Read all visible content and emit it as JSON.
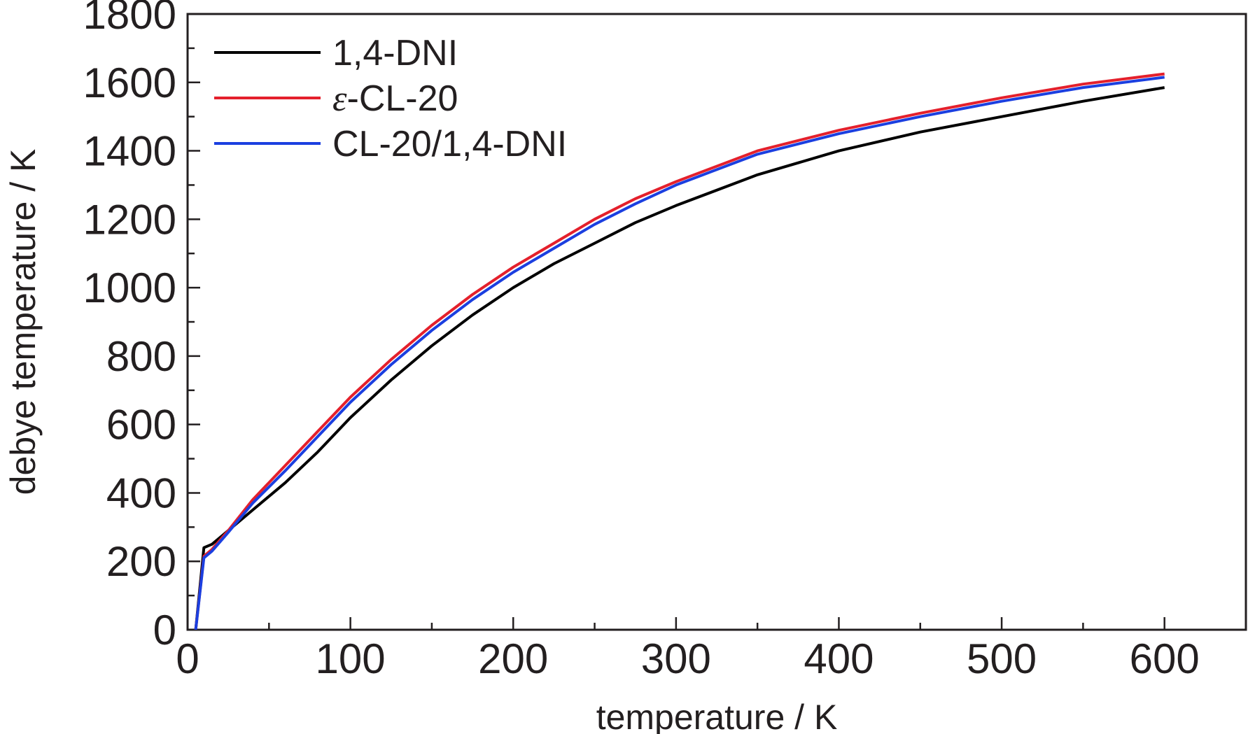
{
  "chart_data": {
    "type": "line",
    "title": "",
    "xlabel": "temperature / K",
    "ylabel": "debye temperature / K",
    "xlim": [
      0,
      650
    ],
    "ylim": [
      0,
      1800
    ],
    "x_ticks": [
      0,
      100,
      200,
      300,
      400,
      500,
      600
    ],
    "y_ticks": [
      0,
      200,
      400,
      600,
      800,
      1000,
      1200,
      1400,
      1600,
      1800
    ],
    "x_minor_step": 50,
    "y_minor_step": 100,
    "grid": false,
    "legend_position": "top-left",
    "series": [
      {
        "name": "1,4-DNI",
        "color": "#000000",
        "x": [
          5,
          10,
          15,
          25,
          40,
          60,
          80,
          100,
          125,
          150,
          175,
          200,
          225,
          250,
          275,
          300,
          350,
          400,
          450,
          500,
          550,
          600
        ],
        "y": [
          0,
          240,
          250,
          290,
          350,
          430,
          520,
          620,
          730,
          830,
          920,
          1000,
          1070,
          1130,
          1190,
          1240,
          1330,
          1400,
          1455,
          1500,
          1545,
          1585
        ]
      },
      {
        "name": "ε-CL-20",
        "name_prefix": "ε",
        "name_suffix": "-CL-20",
        "color": "#e4202c",
        "x": [
          5,
          10,
          15,
          25,
          40,
          60,
          80,
          100,
          125,
          150,
          175,
          200,
          225,
          250,
          275,
          300,
          350,
          400,
          450,
          500,
          550,
          600
        ],
        "y": [
          0,
          215,
          235,
          290,
          380,
          480,
          580,
          680,
          790,
          890,
          980,
          1060,
          1130,
          1200,
          1260,
          1310,
          1400,
          1460,
          1510,
          1555,
          1595,
          1625
        ]
      },
      {
        "name": "CL-20/1,4-DNI",
        "color": "#1b3fe0",
        "x": [
          5,
          10,
          15,
          25,
          40,
          60,
          80,
          100,
          125,
          150,
          175,
          200,
          225,
          250,
          275,
          300,
          350,
          400,
          450,
          500,
          550,
          600
        ],
        "y": [
          0,
          210,
          230,
          285,
          370,
          465,
          565,
          665,
          775,
          875,
          965,
          1045,
          1115,
          1185,
          1245,
          1300,
          1390,
          1450,
          1500,
          1545,
          1585,
          1615
        ]
      }
    ]
  }
}
